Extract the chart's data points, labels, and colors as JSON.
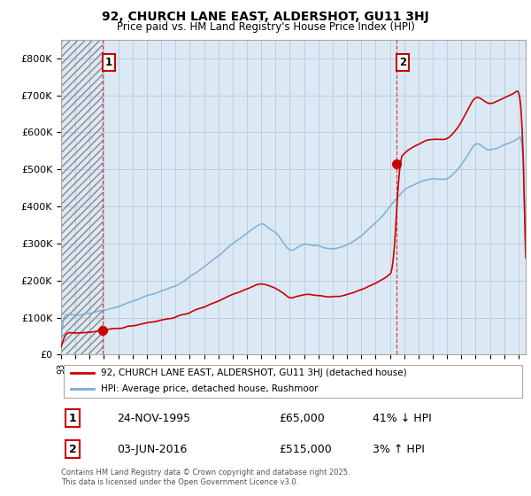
{
  "title": "92, CHURCH LANE EAST, ALDERSHOT, GU11 3HJ",
  "subtitle": "Price paid vs. HM Land Registry's House Price Index (HPI)",
  "ylim": [
    0,
    850000
  ],
  "yticks": [
    0,
    100000,
    200000,
    300000,
    400000,
    500000,
    600000,
    700000,
    800000
  ],
  "ytick_labels": [
    "£0",
    "£100K",
    "£200K",
    "£300K",
    "£400K",
    "£500K",
    "£600K",
    "£700K",
    "£800K"
  ],
  "hpi_color": "#7aadd4",
  "price_color": "#cc0000",
  "sale1_year": 1995.9,
  "sale1_price_val": 65000,
  "sale2_year": 2016.45,
  "sale2_price_val": 515000,
  "sale1_label": "24-NOV-1995",
  "sale1_price": "£65,000",
  "sale1_hpi": "41% ↓ HPI",
  "sale2_label": "03-JUN-2016",
  "sale2_price": "£515,000",
  "sale2_hpi": "3% ↑ HPI",
  "legend_price": "92, CHURCH LANE EAST, ALDERSHOT, GU11 3HJ (detached house)",
  "legend_hpi": "HPI: Average price, detached house, Rushmoor",
  "footer": "Contains HM Land Registry data © Crown copyright and database right 2025.\nThis data is licensed under the Open Government Licence v3.0.",
  "background_color": "#ffffff",
  "plot_bg_color": "#dce9f5",
  "grid_color": "#b8cfe0"
}
